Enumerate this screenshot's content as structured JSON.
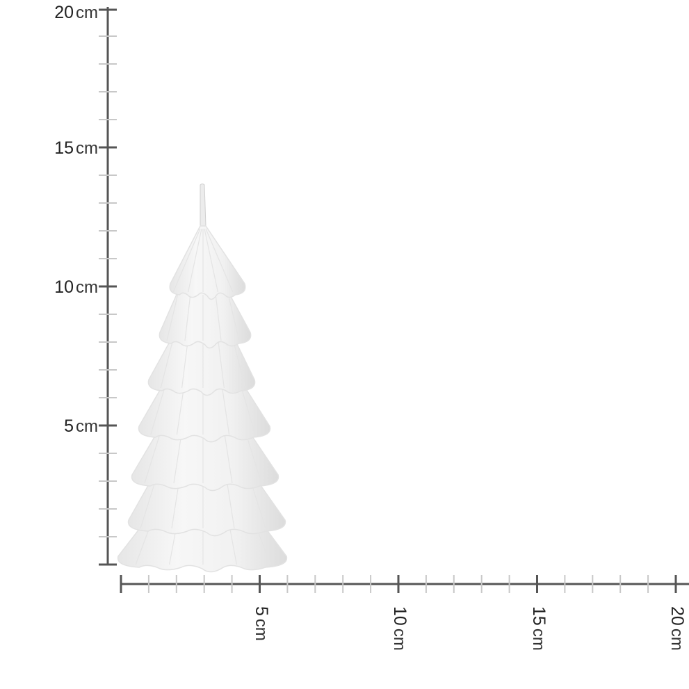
{
  "ruler": {
    "unit": "cm",
    "vertical": {
      "labels": [
        "20",
        "15",
        "10",
        "5"
      ],
      "range_cm": [
        0,
        20
      ],
      "major_every_cm": 5,
      "minor_every_cm": 1
    },
    "horizontal": {
      "labels": [
        "5",
        "10",
        "15",
        "20"
      ],
      "range_cm": [
        0,
        20
      ],
      "major_every_cm": 5,
      "minor_every_cm": 1
    },
    "axis_color": "#555555",
    "minor_tick_color": "#c8c8c8"
  },
  "product": {
    "object": "tree-shaped-candle",
    "color": "#f2f2f2",
    "height_cm": 13.7
  }
}
